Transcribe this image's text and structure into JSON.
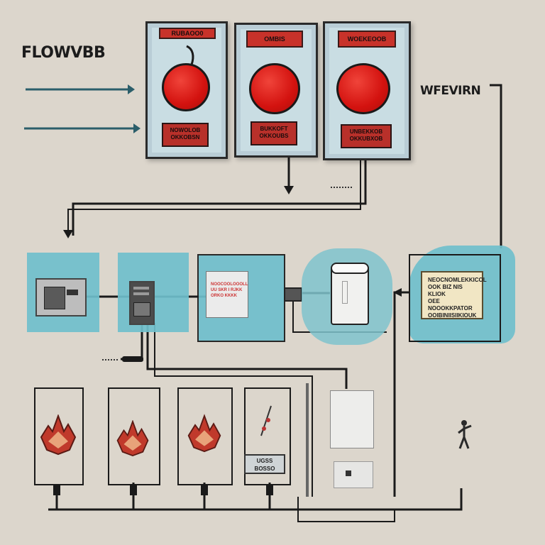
{
  "title": "FLOWVBB",
  "side_label": "WFEVIRN",
  "panels": [
    {
      "top_label": "RUBAOO0",
      "bottom_label_l1": "NOWOLOB",
      "bottom_label_l2": "OKKOBSN"
    },
    {
      "top_label": "OMBIS",
      "bottom_label_l1": "BUKKOFT",
      "bottom_label_l2": "OKKOUBS"
    },
    {
      "top_label": "WOEKEOOB",
      "bottom_label_l1": "UNBEKKOB",
      "bottom_label_l2": "OKKUBXOB"
    }
  ],
  "middle_note": {
    "lines": [
      "NOOCOOLOOOLL",
      "UU SKR I RJKK",
      "ORKO KKKK"
    ]
  },
  "right_note": {
    "lines": [
      "NEOCNOMLEKKICOL",
      "OOK BIZ NIS KLIOK",
      "OEE NOOOKKPATOR",
      "OOIBINIISIIKIOUK"
    ]
  },
  "bottom_box_label": {
    "l1": "UGSS",
    "l2": "BOSSO"
  },
  "colors": {
    "accent_blue": "#6fbfcc",
    "red": "#d3120f",
    "panel_bg": "#c9dde3",
    "background": "#dcd6cc"
  },
  "icons": [
    "arrow-right-icon",
    "red-ball-icon",
    "server-icon",
    "fire-icon",
    "tank-icon",
    "person-icon"
  ]
}
